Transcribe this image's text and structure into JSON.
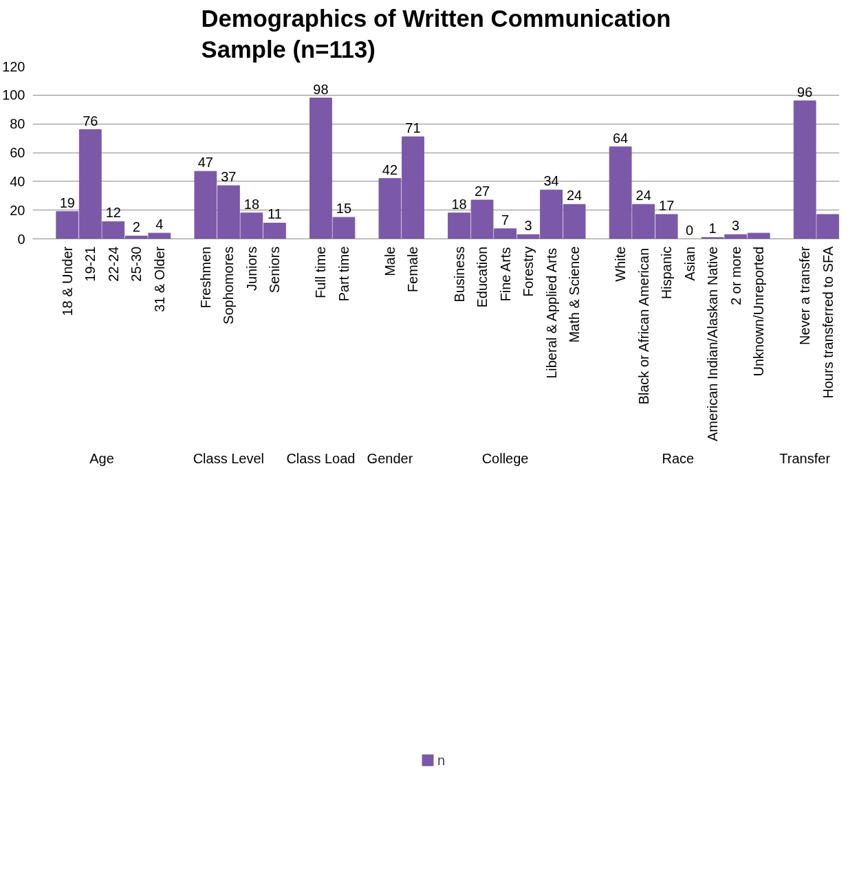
{
  "chart_data": {
    "type": "bar",
    "title": "Demographics of Written Communication Sample (n=113)",
    "categories": [
      null,
      "18 & Under",
      "19-21",
      "22-24",
      "25-30",
      "31 & Older",
      null,
      "Freshmen",
      "Sophomores",
      "Juniors",
      "Seniors",
      null,
      "Full time",
      "Part time",
      null,
      "Male",
      "Female",
      null,
      "Business",
      "Education",
      "Fine Arts",
      "Forestry",
      "Liberal & Applied Arts",
      "Math & Science",
      null,
      "White",
      "Black or African American",
      "Hispanic",
      "Asian",
      "American Indian/Alaskan Native",
      "2 or more",
      "Unknown/Unreported",
      null,
      "Never a transfer",
      "Hours transferred to SFA"
    ],
    "series": [
      {
        "name": "n",
        "color": "#7b59a8",
        "values": [
          null,
          19,
          76,
          12,
          2,
          4,
          null,
          47,
          37,
          18,
          11,
          null,
          98,
          15,
          null,
          42,
          71,
          null,
          18,
          27,
          7,
          3,
          34,
          24,
          null,
          64,
          24,
          17,
          0,
          1,
          3,
          4,
          null,
          96,
          17
        ],
        "value_labels": [
          null,
          "19",
          "76",
          "12",
          "2",
          "4",
          null,
          "47",
          "37",
          "18",
          "11",
          null,
          "98",
          "15",
          null,
          "42",
          "71",
          null,
          "18",
          "27",
          "7",
          "3",
          "34",
          "24",
          null,
          "64",
          "24",
          "17",
          "0",
          "1",
          "3",
          null,
          null,
          "96",
          null
        ]
      }
    ],
    "annotations": [
      "Age",
      "Class Level",
      "Class Load",
      "Gender",
      "College",
      "Race",
      "Transfer"
    ],
    "ylim": [
      0,
      120
    ],
    "yticks": [
      0,
      20,
      40,
      60,
      80,
      100,
      120
    ],
    "grid": "y",
    "legend": "bottom"
  }
}
